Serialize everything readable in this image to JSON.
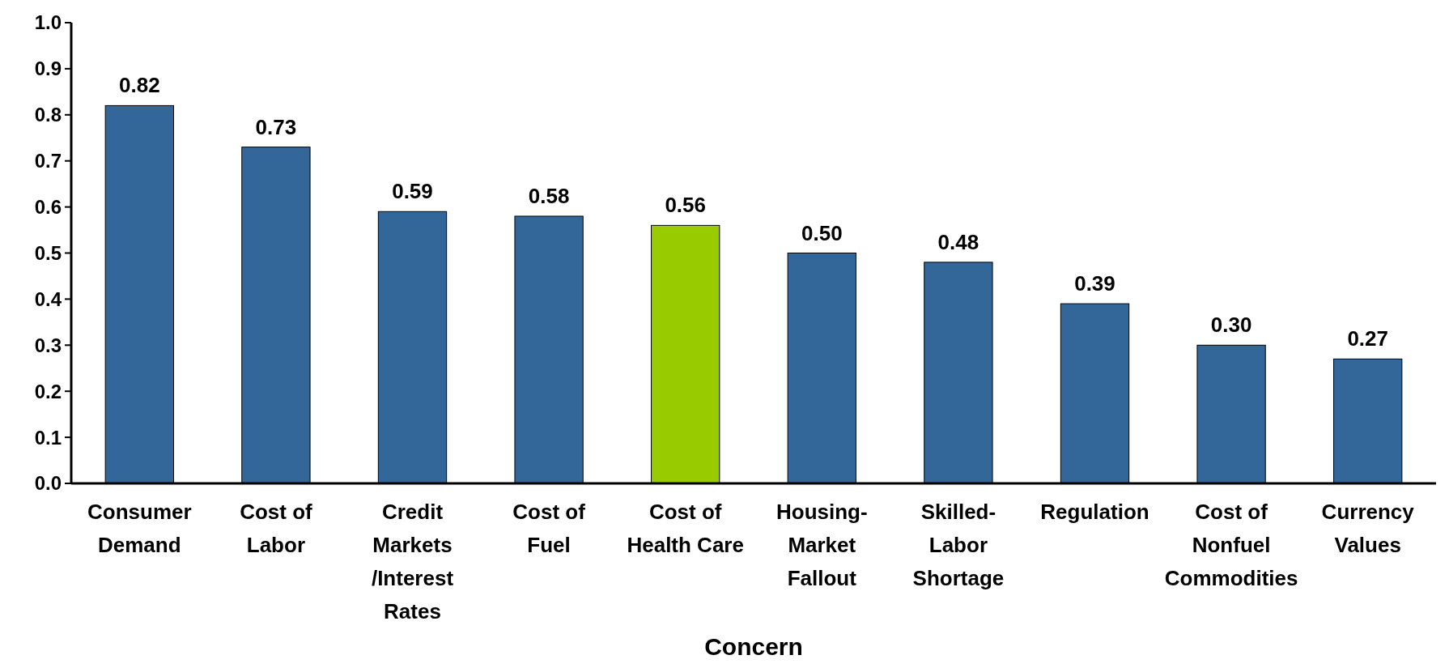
{
  "chart_data": {
    "type": "bar",
    "xlabel": "Concern",
    "categories": [
      "Consumer Demand",
      "Cost of Labor",
      "Credit Markets /Interest Rates",
      "Cost of Fuel",
      "Cost of Health Care",
      "Housing-Market Fallout",
      "Skilled-Labor Shortage",
      "Regulation",
      "Cost of Nonfuel Commodities",
      "Currency Values"
    ],
    "values": [
      0.82,
      0.73,
      0.59,
      0.58,
      0.56,
      0.5,
      0.48,
      0.39,
      0.3,
      0.27
    ],
    "value_labels": [
      "0.82",
      "0.73",
      "0.59",
      "0.58",
      "0.56",
      "0.50",
      "0.48",
      "0.39",
      "0.30",
      "0.27"
    ],
    "colors": [
      "#336699",
      "#336699",
      "#336699",
      "#336699",
      "#99cc00",
      "#336699",
      "#336699",
      "#336699",
      "#336699",
      "#336699"
    ],
    "ylim": [
      0,
      1
    ],
    "yticks": [
      {
        "value": 0,
        "label": "0.0"
      },
      {
        "value": 0.1,
        "label": "0.1"
      },
      {
        "value": 0.2,
        "label": "0.2"
      },
      {
        "value": 0.3,
        "label": "0.3"
      },
      {
        "value": 0.4,
        "label": "0.4"
      },
      {
        "value": 0.5,
        "label": "0.5"
      },
      {
        "value": 0.6,
        "label": "0.6"
      },
      {
        "value": 0.7,
        "label": "0.7"
      },
      {
        "value": 0.8,
        "label": "0.8"
      },
      {
        "value": 0.9,
        "label": "0.9"
      },
      {
        "value": 1,
        "label": "1.0"
      }
    ],
    "grid": false
  }
}
